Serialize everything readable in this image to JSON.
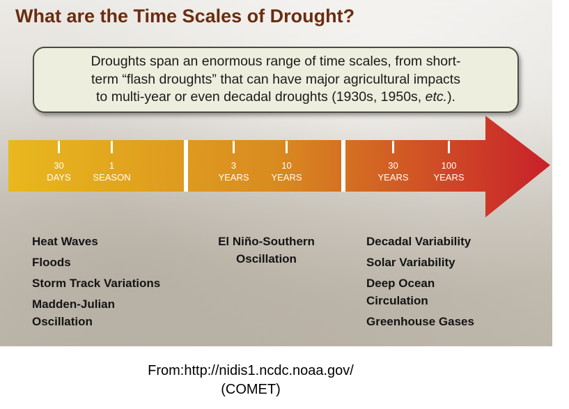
{
  "title": "What are the Time Scales of Drought?",
  "callout": {
    "line1": "Droughts span an enormous range of time scales, from short-",
    "line2": "term “flash droughts” that can have major agricultural impacts",
    "line3_prefix": "to multi-year or even decadal droughts (1930s, 1950s, ",
    "line3_em": "etc.",
    "line3_suffix": ")."
  },
  "timeline": {
    "colors": {
      "start": "#e8b81e",
      "middle": "#d98a1f",
      "end": "#c8202a"
    },
    "ticks": [
      {
        "num": "30",
        "unit": "DAYS"
      },
      {
        "num": "1",
        "unit": "SEASON"
      },
      {
        "num": "3",
        "unit": "YEARS"
      },
      {
        "num": "10",
        "unit": "YEARS"
      },
      {
        "num": "30",
        "unit": "YEARS"
      },
      {
        "num": "100",
        "unit": "YEARS"
      }
    ]
  },
  "phenomena": {
    "short_term": [
      "Heat Waves",
      "Floods",
      "Storm Track Variations",
      "Madden-Julian Oscillation"
    ],
    "mid_term": [
      "El Niño-Southern Oscillation"
    ],
    "long_term": [
      "Decadal Variability",
      "Solar Variability",
      "Deep Ocean Circulation",
      "Greenhouse Gases"
    ]
  },
  "source": {
    "line1": "From:http://nidis1.ncdc.noaa.gov/",
    "line2": "(COMET)"
  }
}
